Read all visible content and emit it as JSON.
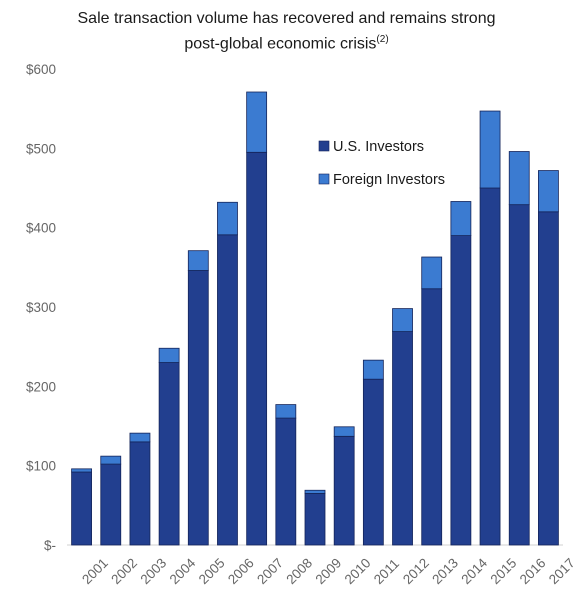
{
  "chart_data": {
    "type": "bar",
    "stacked": true,
    "title_line1": "Sale transaction volume has recovered and remains strong",
    "title_line2": "post-global economic crisis",
    "title_footnote": "(2)",
    "xlabel": "",
    "ylabel": "",
    "categories": [
      "2001",
      "2002",
      "2003",
      "2004",
      "2005",
      "2006",
      "2007",
      "2008",
      "2009",
      "2010",
      "2011",
      "2012",
      "2013",
      "2014",
      "2015",
      "2016",
      "2017"
    ],
    "series": [
      {
        "name": "U.S. Investors",
        "color": "#223f8f",
        "values": [
          92,
          102,
          130,
          230,
          346,
          391,
          495,
          160,
          65,
          137,
          209,
          269,
          323,
          390,
          450,
          429,
          420
        ]
      },
      {
        "name": "Foreign Investors",
        "color": "#3b7bd1",
        "values": [
          4,
          10,
          11,
          18,
          25,
          41,
          76,
          17,
          4,
          12,
          24,
          29,
          40,
          43,
          97,
          67,
          52
        ]
      }
    ],
    "ylim": [
      0,
      600
    ],
    "yticks": [
      0,
      100,
      200,
      300,
      400,
      500,
      600
    ],
    "ytick_labels": [
      "$-",
      "$100",
      "$200",
      "$300",
      "$400",
      "$500",
      "$600"
    ],
    "grid": false,
    "legend_position": "upper-right inside plot"
  }
}
